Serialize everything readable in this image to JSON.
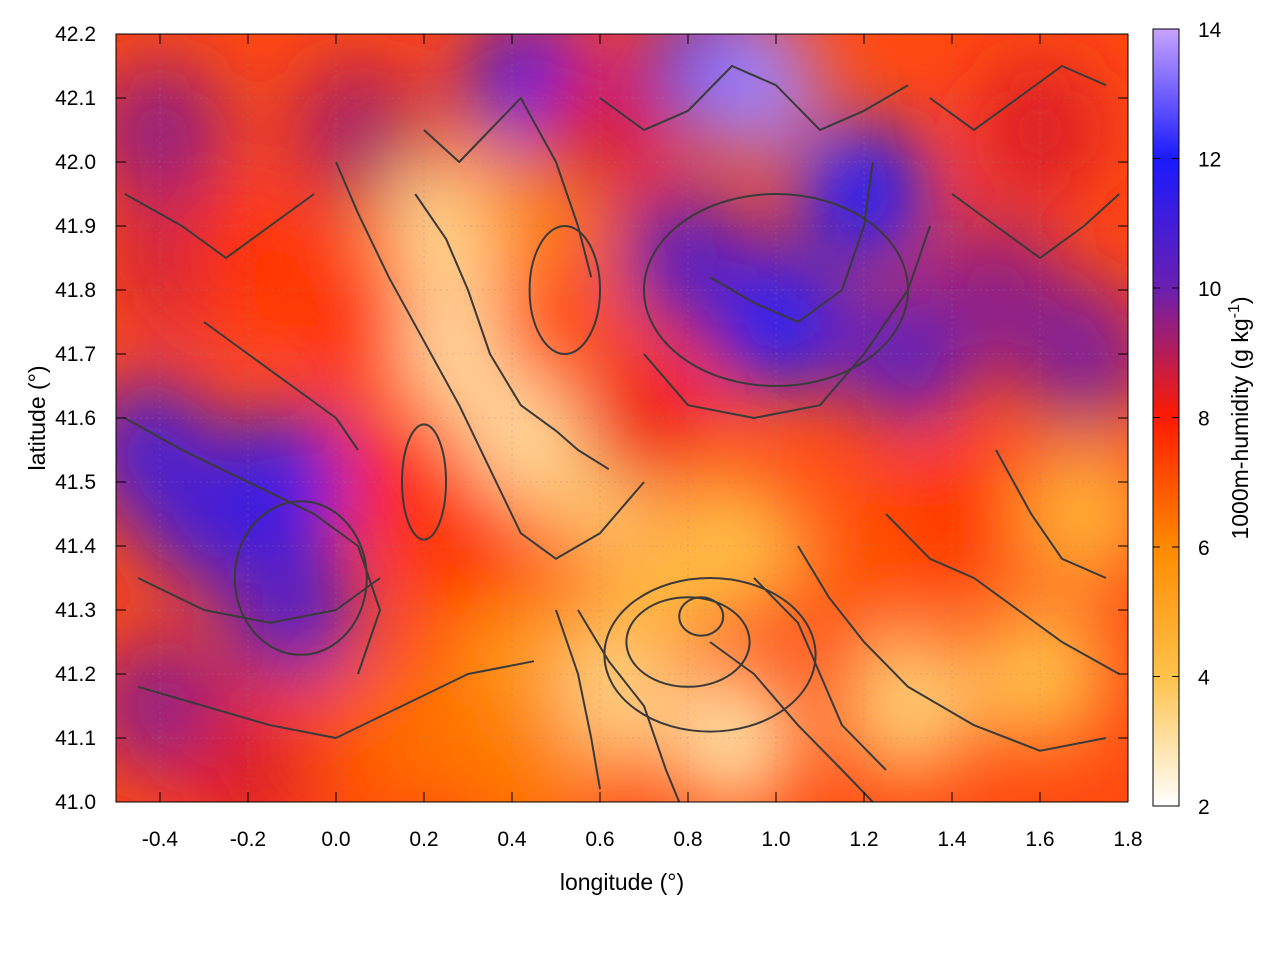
{
  "chart_data": {
    "type": "heatmap",
    "xlabel": "longitude (°)",
    "ylabel": "latitude (°)",
    "colorbar_label_main": "1000m-humidity (g kg",
    "colorbar_label_sup": "-1",
    "colorbar_label_end": ")",
    "xlim": [
      -0.5,
      1.8
    ],
    "ylim": [
      41.0,
      42.2
    ],
    "x_ticks": [
      -0.4,
      -0.2,
      0.0,
      0.2,
      0.4,
      0.6,
      0.8,
      1.0,
      1.2,
      1.4,
      1.6,
      1.8
    ],
    "x_tick_labels": [
      "-0.4",
      "-0.2",
      "0.0",
      "0.2",
      "0.4",
      "0.6",
      "0.8",
      "1.0",
      "1.2",
      "1.4",
      "1.6",
      "1.8"
    ],
    "y_ticks": [
      41.0,
      41.1,
      41.2,
      41.3,
      41.4,
      41.5,
      41.6,
      41.7,
      41.8,
      41.9,
      42.0,
      42.1,
      42.2
    ],
    "y_tick_labels": [
      "41.0",
      "41.1",
      "41.2",
      "41.3",
      "41.4",
      "41.5",
      "41.6",
      "41.7",
      "41.8",
      "41.9",
      "42.0",
      "42.1",
      "42.2"
    ],
    "colorbar_range": [
      2,
      14
    ],
    "colorbar_ticks": [
      2,
      4,
      6,
      8,
      10,
      12,
      14
    ],
    "colorbar_tick_labels": [
      "2",
      "4",
      "6",
      "8",
      "10",
      "12",
      "14"
    ],
    "colormap": [
      {
        "value": 2,
        "color": "#ffffff"
      },
      {
        "value": 4,
        "color": "#ffc24a"
      },
      {
        "value": 6,
        "color": "#ff8a00"
      },
      {
        "value": 8,
        "color": "#ff1a00"
      },
      {
        "value": 10,
        "color": "#6a1fb0"
      },
      {
        "value": 12,
        "color": "#1a1aff"
      },
      {
        "value": 14,
        "color": "#c7a3ff"
      }
    ],
    "grid": true,
    "contour_color": "#3a3a3a",
    "field_regions": [
      {
        "lon": -0.4,
        "lat": 42.05,
        "value": 9.5
      },
      {
        "lon": -0.35,
        "lat": 41.85,
        "value": 8.8
      },
      {
        "lon": -0.42,
        "lat": 41.55,
        "value": 11.0
      },
      {
        "lon": -0.3,
        "lat": 41.45,
        "value": 10.8
      },
      {
        "lon": -0.1,
        "lat": 41.5,
        "value": 11.5
      },
      {
        "lon": -0.1,
        "lat": 41.3,
        "value": 10.6
      },
      {
        "lon": -0.4,
        "lat": 41.15,
        "value": 9.6
      },
      {
        "lon": -0.2,
        "lat": 41.05,
        "value": 8.5
      },
      {
        "lon": 0.05,
        "lat": 41.1,
        "value": 7.2
      },
      {
        "lon": -0.2,
        "lat": 41.85,
        "value": 7.5
      },
      {
        "lon": 0.1,
        "lat": 41.75,
        "value": 7.8
      },
      {
        "lon": 0.05,
        "lat": 42.05,
        "value": 9.2
      },
      {
        "lon": 0.15,
        "lat": 41.5,
        "value": 7.9
      },
      {
        "lon": 0.25,
        "lat": 41.9,
        "value": 3.2
      },
      {
        "lon": 0.3,
        "lat": 41.7,
        "value": 3.0
      },
      {
        "lon": 0.45,
        "lat": 41.55,
        "value": 3.0
      },
      {
        "lon": 0.6,
        "lat": 41.5,
        "value": 3.5
      },
      {
        "lon": 0.45,
        "lat": 41.95,
        "value": 6.0
      },
      {
        "lon": 0.5,
        "lat": 41.75,
        "value": 7.0
      },
      {
        "lon": 0.45,
        "lat": 42.12,
        "value": 11.5
      },
      {
        "lon": 0.6,
        "lat": 42.05,
        "value": 8.5
      },
      {
        "lon": 0.85,
        "lat": 42.15,
        "value": 11.0
      },
      {
        "lon": 0.95,
        "lat": 42.12,
        "value": 13.5
      },
      {
        "lon": 1.2,
        "lat": 41.95,
        "value": 12.0
      },
      {
        "lon": 1.0,
        "lat": 41.75,
        "value": 12.0
      },
      {
        "lon": 0.8,
        "lat": 41.85,
        "value": 10.5
      },
      {
        "lon": 0.7,
        "lat": 41.6,
        "value": 8.2
      },
      {
        "lon": 1.3,
        "lat": 41.7,
        "value": 10.5
      },
      {
        "lon": 1.5,
        "lat": 41.8,
        "value": 9.5
      },
      {
        "lon": 1.6,
        "lat": 42.05,
        "value": 8.5
      },
      {
        "lon": 1.7,
        "lat": 41.7,
        "value": 9.8
      },
      {
        "lon": 1.7,
        "lat": 41.45,
        "value": 4.5
      },
      {
        "lon": 1.4,
        "lat": 41.45,
        "value": 7.5
      },
      {
        "lon": 1.2,
        "lat": 41.35,
        "value": 7.0
      },
      {
        "lon": 0.9,
        "lat": 41.4,
        "value": 4.0
      },
      {
        "lon": 0.7,
        "lat": 41.3,
        "value": 4.5
      },
      {
        "lon": 0.6,
        "lat": 41.15,
        "value": 3.3
      },
      {
        "lon": 0.9,
        "lat": 41.1,
        "value": 3.0
      },
      {
        "lon": 1.3,
        "lat": 41.15,
        "value": 3.5
      },
      {
        "lon": 1.6,
        "lat": 41.2,
        "value": 4.0
      },
      {
        "lon": 0.4,
        "lat": 41.25,
        "value": 5.5
      },
      {
        "lon": 0.3,
        "lat": 41.4,
        "value": 7.5
      },
      {
        "lon": 0.2,
        "lat": 41.1,
        "value": 6.5
      },
      {
        "lon": 0.45,
        "lat": 41.05,
        "value": 6.2
      }
    ],
    "contours": [
      [
        [
          0.0,
          42.0
        ],
        [
          0.05,
          41.92
        ],
        [
          0.12,
          41.82
        ],
        [
          0.2,
          41.72
        ],
        [
          0.28,
          41.62
        ],
        [
          0.35,
          41.52
        ],
        [
          0.42,
          41.42
        ],
        [
          0.5,
          41.38
        ],
        [
          0.6,
          41.42
        ],
        [
          0.7,
          41.5
        ]
      ],
      [
        [
          0.18,
          41.95
        ],
        [
          0.25,
          41.88
        ],
        [
          0.3,
          41.8
        ],
        [
          0.35,
          41.7
        ],
        [
          0.42,
          41.62
        ],
        [
          0.5,
          41.58
        ],
        [
          0.55,
          41.55
        ],
        [
          0.62,
          41.52
        ]
      ],
      [
        [
          0.2,
          42.05
        ],
        [
          0.28,
          42.0
        ],
        [
          0.35,
          42.05
        ],
        [
          0.42,
          42.1
        ],
        [
          0.5,
          42.0
        ],
        [
          0.55,
          41.9
        ],
        [
          0.58,
          41.82
        ]
      ],
      [
        [
          -0.48,
          41.6
        ],
        [
          -0.35,
          41.55
        ],
        [
          -0.2,
          41.5
        ],
        [
          -0.05,
          41.45
        ],
        [
          0.05,
          41.4
        ],
        [
          0.1,
          41.3
        ],
        [
          0.05,
          41.2
        ]
      ],
      [
        [
          -0.45,
          41.35
        ],
        [
          -0.3,
          41.3
        ],
        [
          -0.15,
          41.28
        ],
        [
          0.0,
          41.3
        ],
        [
          0.1,
          41.35
        ]
      ],
      [
        [
          -0.45,
          41.18
        ],
        [
          -0.3,
          41.15
        ],
        [
          -0.15,
          41.12
        ],
        [
          0.0,
          41.1
        ],
        [
          0.15,
          41.15
        ],
        [
          0.3,
          41.2
        ],
        [
          0.45,
          41.22
        ]
      ],
      [
        [
          0.55,
          41.3
        ],
        [
          0.62,
          41.22
        ],
        [
          0.7,
          41.15
        ],
        [
          0.75,
          41.05
        ],
        [
          0.78,
          41.0
        ]
      ],
      [
        [
          0.5,
          41.3
        ],
        [
          0.55,
          41.2
        ],
        [
          0.58,
          41.1
        ],
        [
          0.6,
          41.02
        ]
      ],
      [
        [
          0.85,
          41.25
        ],
        [
          0.95,
          41.2
        ],
        [
          1.05,
          41.12
        ],
        [
          1.15,
          41.05
        ],
        [
          1.22,
          41.0
        ]
      ],
      [
        [
          0.95,
          41.35
        ],
        [
          1.05,
          41.28
        ],
        [
          1.1,
          41.2
        ],
        [
          1.15,
          41.12
        ],
        [
          1.25,
          41.05
        ]
      ],
      [
        [
          1.05,
          41.4
        ],
        [
          1.12,
          41.32
        ],
        [
          1.2,
          41.25
        ],
        [
          1.3,
          41.18
        ],
        [
          1.45,
          41.12
        ],
        [
          1.6,
          41.08
        ],
        [
          1.75,
          41.1
        ]
      ],
      [
        [
          1.25,
          41.45
        ],
        [
          1.35,
          41.38
        ],
        [
          1.45,
          41.35
        ],
        [
          1.55,
          41.3
        ],
        [
          1.65,
          41.25
        ],
        [
          1.78,
          41.2
        ]
      ],
      [
        [
          1.5,
          41.55
        ],
        [
          1.58,
          41.45
        ],
        [
          1.65,
          41.38
        ],
        [
          1.75,
          41.35
        ]
      ],
      [
        [
          0.7,
          41.7
        ],
        [
          0.8,
          41.62
        ],
        [
          0.95,
          41.6
        ],
        [
          1.1,
          41.62
        ],
        [
          1.2,
          41.7
        ],
        [
          1.3,
          41.8
        ],
        [
          1.35,
          41.9
        ]
      ],
      [
        [
          0.85,
          41.82
        ],
        [
          0.95,
          41.78
        ],
        [
          1.05,
          41.75
        ],
        [
          1.15,
          41.8
        ],
        [
          1.2,
          41.9
        ],
        [
          1.22,
          42.0
        ]
      ],
      [
        [
          0.6,
          42.1
        ],
        [
          0.7,
          42.05
        ],
        [
          0.8,
          42.08
        ],
        [
          0.9,
          42.15
        ],
        [
          1.0,
          42.12
        ],
        [
          1.1,
          42.05
        ],
        [
          1.2,
          42.08
        ],
        [
          1.3,
          42.12
        ]
      ],
      [
        [
          1.4,
          41.95
        ],
        [
          1.5,
          41.9
        ],
        [
          1.6,
          41.85
        ],
        [
          1.7,
          41.9
        ],
        [
          1.78,
          41.95
        ]
      ],
      [
        [
          1.35,
          42.1
        ],
        [
          1.45,
          42.05
        ],
        [
          1.55,
          42.1
        ],
        [
          1.65,
          42.15
        ],
        [
          1.75,
          42.12
        ]
      ],
      [
        [
          -0.48,
          41.95
        ],
        [
          -0.35,
          41.9
        ],
        [
          -0.25,
          41.85
        ],
        [
          -0.15,
          41.9
        ],
        [
          -0.05,
          41.95
        ]
      ],
      [
        [
          -0.3,
          41.75
        ],
        [
          -0.2,
          41.7
        ],
        [
          -0.1,
          41.65
        ],
        [
          0.0,
          41.6
        ],
        [
          0.05,
          41.55
        ]
      ]
    ],
    "contour_loops": [
      {
        "lon": 0.83,
        "lat": 41.29,
        "rlon": 0.05,
        "rlat": 0.03
      },
      {
        "lon": 0.8,
        "lat": 41.25,
        "rlon": 0.14,
        "rlat": 0.07
      },
      {
        "lon": 0.85,
        "lat": 41.23,
        "rlon": 0.24,
        "rlat": 0.12
      },
      {
        "lon": 0.52,
        "lat": 41.8,
        "rlon": 0.08,
        "rlat": 0.1
      },
      {
        "lon": 0.2,
        "lat": 41.5,
        "rlon": 0.05,
        "rlat": 0.09
      },
      {
        "lon": -0.08,
        "lat": 41.35,
        "rlon": 0.15,
        "rlat": 0.12
      },
      {
        "lon": 1.0,
        "lat": 41.8,
        "rlon": 0.3,
        "rlat": 0.15
      }
    ]
  }
}
